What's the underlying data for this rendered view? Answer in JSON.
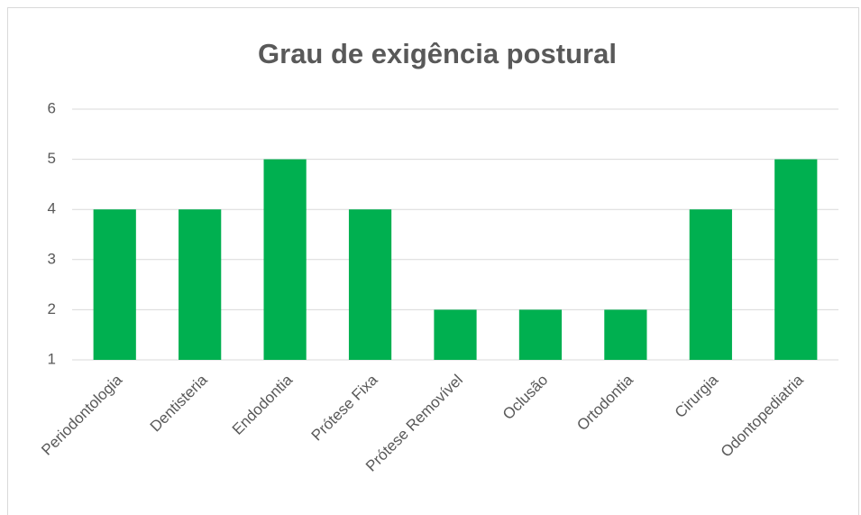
{
  "chart_data": {
    "type": "bar",
    "title": "Grau de exigência postural",
    "categories": [
      "Periodontologia",
      "Dentisteria",
      "Endodontia",
      "Prótese Fixa",
      "Prótese Removível",
      "Oclusão",
      "Ortodontia",
      "Cirurgia",
      "Odontopediatria"
    ],
    "values": [
      4,
      4,
      5,
      4,
      2,
      2,
      2,
      4,
      5
    ],
    "color": "#00b050",
    "ylim": [
      1,
      6
    ],
    "yticks": [
      1,
      2,
      3,
      4,
      5,
      6
    ],
    "grid": true
  }
}
